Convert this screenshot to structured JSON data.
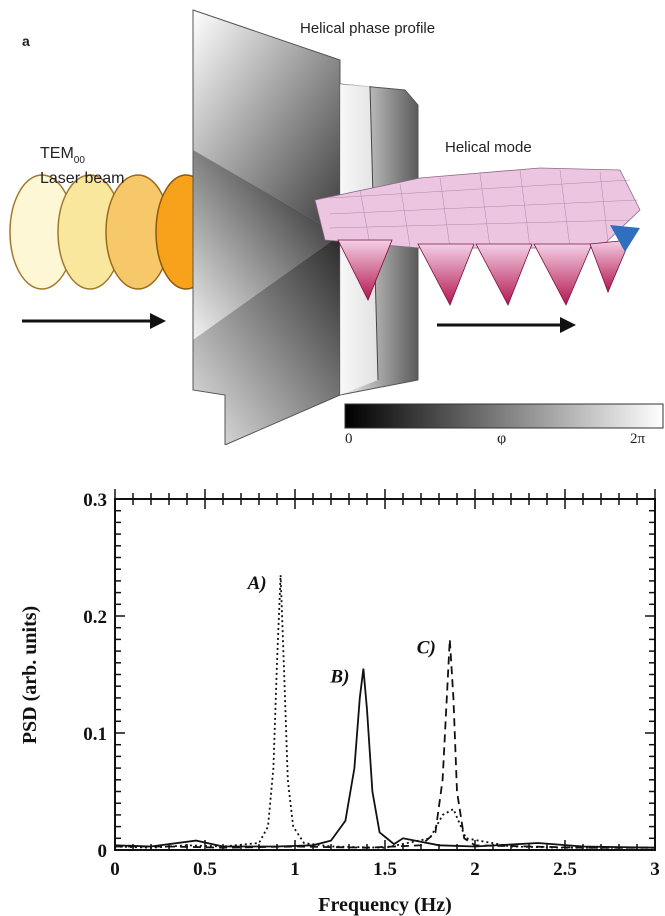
{
  "diagram": {
    "panel_label": "a",
    "phase_title": "Helical phase profile",
    "beam_label_line1": "TEM",
    "beam_label_sub": "00",
    "beam_label_line2": "Laser beam",
    "mode_label": "Helical mode",
    "colorbar": {
      "min_label": "0",
      "mid_label": "φ",
      "max_label": "2π"
    },
    "colors": {
      "beam_light": "#fdf7d6",
      "beam_dark": "#f7a21a",
      "helix_pink": "#e9b7d8",
      "helix_magenta": "#c01c63"
    }
  },
  "chart_data": {
    "type": "line",
    "xlabel": "Frequency (Hz)",
    "ylabel": "PSD (arb. units)",
    "xlim": [
      0,
      3
    ],
    "ylim": [
      0,
      0.3
    ],
    "x_ticks": [
      "0",
      "0.5",
      "1",
      "1.5",
      "2",
      "2.5",
      "3"
    ],
    "y_ticks": [
      "0",
      "0.1",
      "0.2",
      "0.3"
    ],
    "grid": false,
    "series": [
      {
        "name": "A)",
        "style": "dotted",
        "peak_x": 0.92,
        "peak_y": 0.235,
        "x": [
          0,
          0.2,
          0.4,
          0.6,
          0.8,
          0.85,
          0.88,
          0.9,
          0.92,
          0.94,
          0.96,
          0.99,
          1.05,
          1.2,
          1.5,
          1.75,
          1.82,
          1.88,
          1.95,
          2.2,
          2.5,
          3.0
        ],
        "y": [
          0.003,
          0.002,
          0.004,
          0.003,
          0.006,
          0.02,
          0.07,
          0.16,
          0.235,
          0.15,
          0.06,
          0.02,
          0.006,
          0.003,
          0.002,
          0.01,
          0.03,
          0.035,
          0.01,
          0.003,
          0.002,
          0.002
        ]
      },
      {
        "name": "B)",
        "style": "solid",
        "peak_x": 1.38,
        "peak_y": 0.155,
        "x": [
          0,
          0.2,
          0.45,
          0.6,
          0.9,
          1.1,
          1.2,
          1.28,
          1.33,
          1.36,
          1.38,
          1.4,
          1.43,
          1.47,
          1.55,
          1.6,
          1.8,
          2.0,
          2.35,
          2.6,
          3.0
        ],
        "y": [
          0.004,
          0.003,
          0.008,
          0.003,
          0.003,
          0.004,
          0.008,
          0.025,
          0.07,
          0.13,
          0.155,
          0.12,
          0.05,
          0.015,
          0.005,
          0.01,
          0.004,
          0.003,
          0.006,
          0.003,
          0.002
        ]
      },
      {
        "name": "C)",
        "style": "dashed",
        "peak_x": 1.86,
        "peak_y": 0.18,
        "x": [
          0,
          0.3,
          0.6,
          1.0,
          1.4,
          1.7,
          1.78,
          1.82,
          1.84,
          1.86,
          1.88,
          1.9,
          1.94,
          2.0,
          2.3,
          2.6,
          3.0
        ],
        "y": [
          0.003,
          0.003,
          0.002,
          0.003,
          0.002,
          0.004,
          0.015,
          0.06,
          0.12,
          0.18,
          0.13,
          0.05,
          0.01,
          0.004,
          0.003,
          0.002,
          0.002
        ]
      }
    ],
    "annotations": [
      "A)",
      "B)",
      "C)"
    ]
  }
}
